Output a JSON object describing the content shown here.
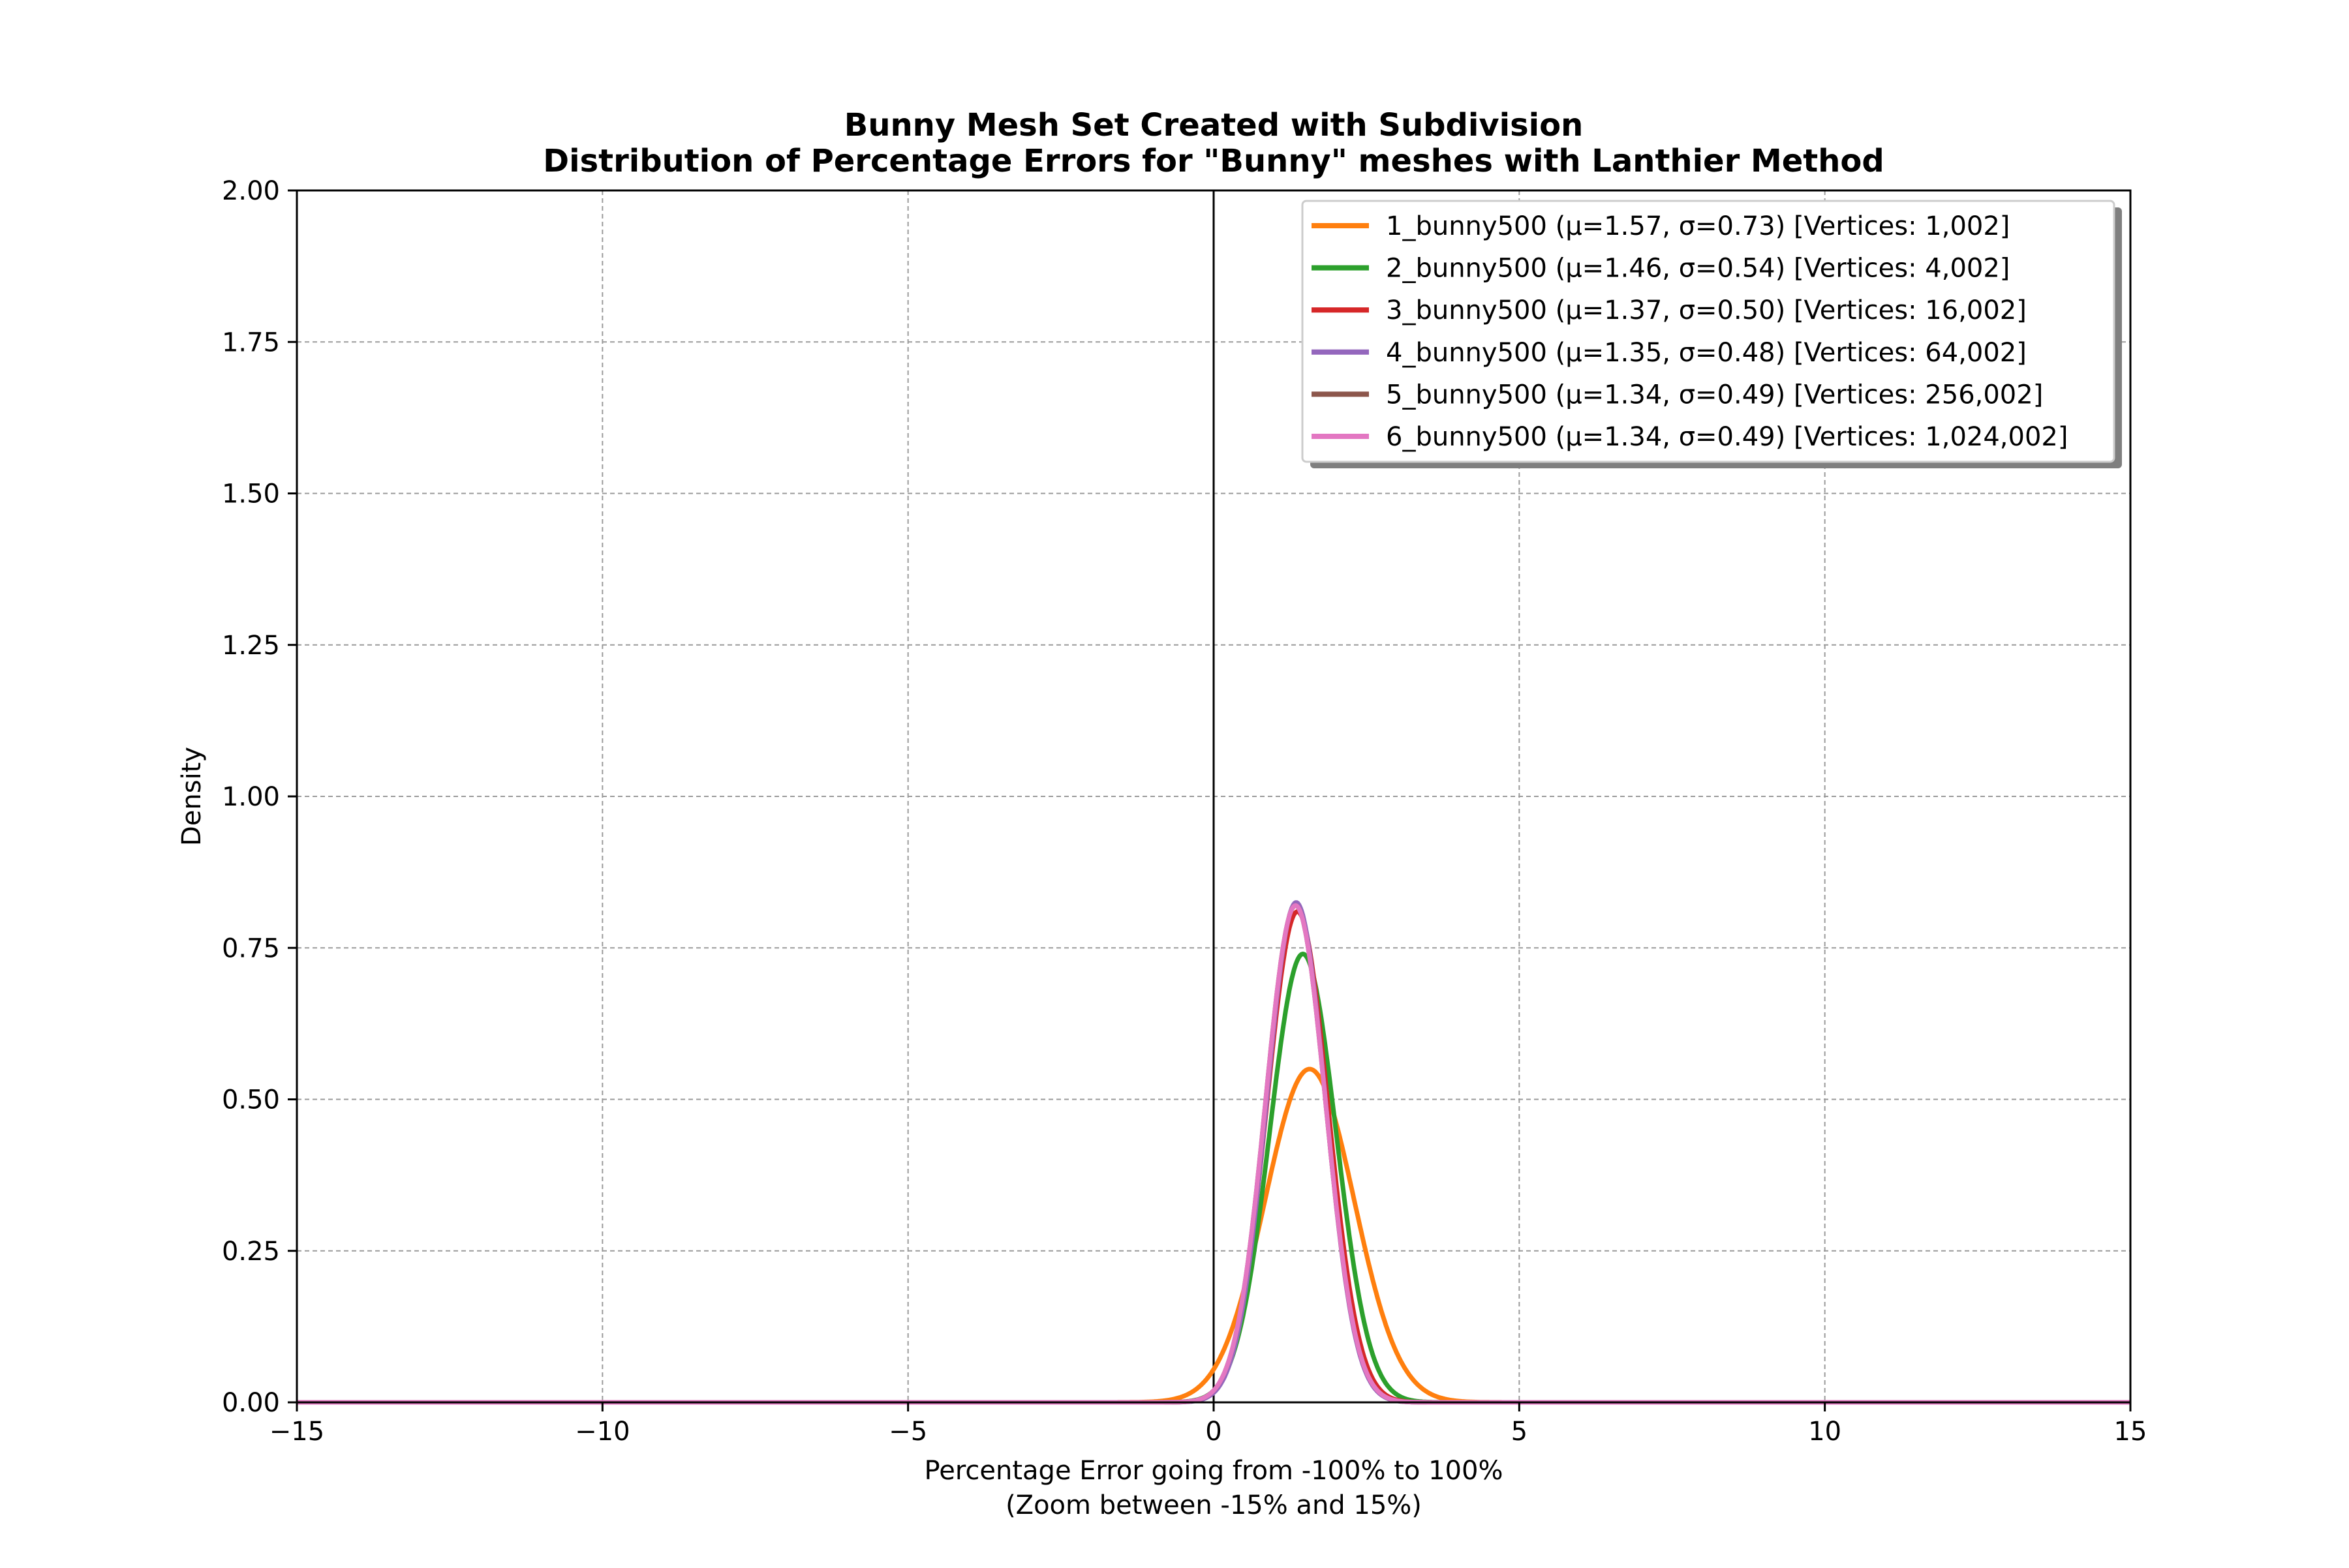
{
  "chart_data": {
    "type": "line",
    "title": "Bunny Mesh Set Created with Subdivision",
    "subtitle": "Distribution of Percentage Errors for \"Bunny\" meshes with Lanthier Method",
    "xlabel": "Percentage Error going from -100% to 100%",
    "xlabel2": "(Zoom between -15% and 15%)",
    "ylabel": "Density",
    "xlim": [
      -15,
      15
    ],
    "ylim": [
      0,
      2
    ],
    "xticks": [
      -15,
      -10,
      -5,
      0,
      5,
      10,
      15
    ],
    "xtick_labels": [
      "−15",
      "−10",
      "−5",
      "0",
      "5",
      "10",
      "15"
    ],
    "yticks": [
      0,
      0.25,
      0.5,
      0.75,
      1.0,
      1.25,
      1.5,
      1.75,
      2.0
    ],
    "ytick_labels": [
      "0.00",
      "0.25",
      "0.50",
      "0.75",
      "1.00",
      "1.25",
      "1.50",
      "1.75",
      "2.00"
    ],
    "grid": true,
    "grid_style": "dashed",
    "vertical_reference_line_x": 0,
    "legend_position": "top-right",
    "series": [
      {
        "name": "1_bunny500 (μ=1.57, σ=0.73) [Vertices: 1,002]",
        "mu": 1.57,
        "sigma": 0.73,
        "peak_density": 0.55,
        "color": "#ff7f0e"
      },
      {
        "name": "2_bunny500 (μ=1.46, σ=0.54) [Vertices: 4,002]",
        "mu": 1.46,
        "sigma": 0.54,
        "peak_density": 0.74,
        "color": "#2ca02c"
      },
      {
        "name": "3_bunny500 (μ=1.37, σ=0.50) [Vertices: 16,002]",
        "mu": 1.37,
        "sigma": 0.5,
        "peak_density": 0.81,
        "color": "#d62728"
      },
      {
        "name": "4_bunny500 (μ=1.35, σ=0.48) [Vertices: 64,002]",
        "mu": 1.35,
        "sigma": 0.48,
        "peak_density": 0.825,
        "color": "#9467bd"
      },
      {
        "name": "5_bunny500 (μ=1.34, σ=0.49) [Vertices: 256,002]",
        "mu": 1.34,
        "sigma": 0.49,
        "peak_density": 0.82,
        "color": "#8c564b"
      },
      {
        "name": "6_bunny500 (μ=1.34, σ=0.49) [Vertices: 1,024,002]",
        "mu": 1.34,
        "sigma": 0.49,
        "peak_density": 0.82,
        "color": "#e377c2"
      }
    ]
  }
}
